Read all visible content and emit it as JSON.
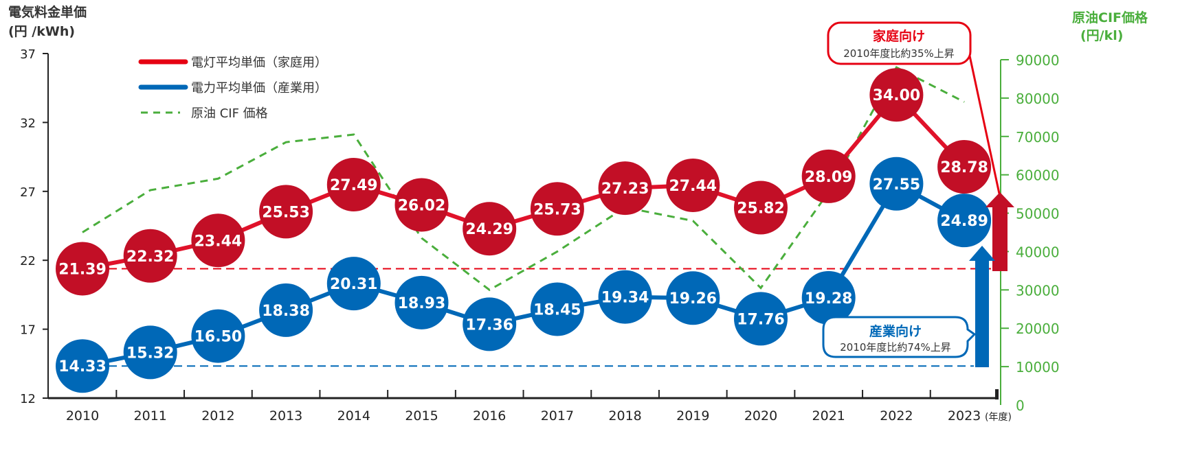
{
  "chart_data": {
    "type": "line",
    "title": "",
    "left_axis": {
      "label_line1": "電気料金単価",
      "label_line2": "(円 /kWh)",
      "ylim": [
        12,
        37
      ],
      "ticks": [
        "12",
        "17",
        "22",
        "27",
        "32",
        "37"
      ]
    },
    "right_axis": {
      "label_line1": "原油CIF価格",
      "label_line2": "(円/kl)",
      "ylim": [
        0,
        90000
      ],
      "ticks": [
        "0",
        "10000",
        "20000",
        "30000",
        "40000",
        "50000",
        "60000",
        "70000",
        "80000",
        "90000"
      ]
    },
    "x": [
      "2010",
      "2011",
      "2012",
      "2013",
      "2014",
      "2015",
      "2016",
      "2017",
      "2018",
      "2019",
      "2020",
      "2021",
      "2022",
      "2023"
    ],
    "x_unit": "(年度)",
    "series": [
      {
        "name": "電灯平均単価（家庭用）",
        "axis": "left",
        "color": "#c20f26",
        "values": [
          21.39,
          22.32,
          23.44,
          25.53,
          27.49,
          26.02,
          24.29,
          25.73,
          27.23,
          27.44,
          25.82,
          28.09,
          34.0,
          28.78
        ],
        "labels": [
          "21.39",
          "22.32",
          "23.44",
          "25.53",
          "27.49",
          "26.02",
          "24.29",
          "25.73",
          "27.23",
          "27.44",
          "25.82",
          "28.09",
          "34.00",
          "28.78"
        ]
      },
      {
        "name": "電力平均単価（産業用）",
        "axis": "left",
        "color": "#0068b7",
        "values": [
          14.33,
          15.32,
          16.5,
          18.38,
          20.31,
          18.93,
          17.36,
          18.45,
          19.34,
          19.26,
          17.76,
          19.28,
          27.55,
          24.89
        ],
        "labels": [
          "14.33",
          "15.32",
          "16.50",
          "18.38",
          "20.31",
          "18.93",
          "17.36",
          "18.45",
          "19.34",
          "19.26",
          "17.76",
          "19.28",
          "27.55",
          "24.89"
        ]
      },
      {
        "name": "原油 CIF 価格",
        "axis": "right",
        "color": "#4aae3c",
        "style": "dashed",
        "values": [
          45000,
          56000,
          59000,
          68500,
          70500,
          43500,
          30000,
          40000,
          51500,
          48000,
          30500,
          55500,
          88000,
          79000
        ]
      }
    ],
    "annotations": {
      "household": {
        "title": "家庭向け",
        "text": "2010年度比約35%上昇"
      },
      "industrial": {
        "title": "産業向け",
        "text": "2010年度比約74%上昇"
      }
    },
    "legend_placement": "top-left",
    "grid": false
  }
}
